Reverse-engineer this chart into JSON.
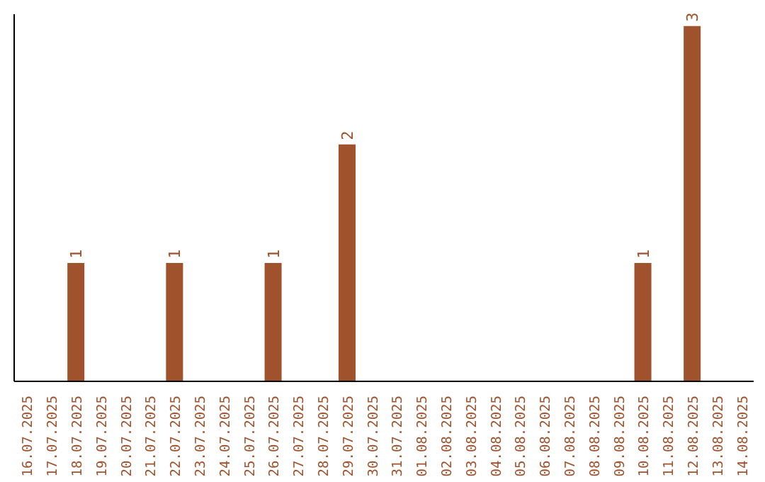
{
  "chart_data": {
    "type": "bar",
    "categories": [
      "16.07.2025",
      "17.07.2025",
      "18.07.2025",
      "19.07.2025",
      "20.07.2025",
      "21.07.2025",
      "22.07.2025",
      "23.07.2025",
      "24.07.2025",
      "25.07.2025",
      "26.07.2025",
      "27.07.2025",
      "28.07.2025",
      "29.07.2025",
      "30.07.2025",
      "31.07.2025",
      "01.08.2025",
      "02.08.2025",
      "03.08.2025",
      "04.08.2025",
      "05.08.2025",
      "06.08.2025",
      "07.08.2025",
      "08.08.2025",
      "09.08.2025",
      "10.08.2025",
      "11.08.2025",
      "12.08.2025",
      "13.08.2025",
      "14.08.2025"
    ],
    "values": [
      0,
      0,
      1,
      0,
      0,
      0,
      1,
      0,
      0,
      0,
      1,
      0,
      0,
      2,
      0,
      0,
      0,
      0,
      0,
      0,
      0,
      0,
      0,
      0,
      0,
      1,
      0,
      3,
      0,
      0
    ],
    "value_labels": [
      null,
      null,
      "1",
      null,
      null,
      null,
      "1",
      null,
      null,
      null,
      "1",
      null,
      null,
      "2",
      null,
      null,
      null,
      null,
      null,
      null,
      null,
      null,
      null,
      null,
      null,
      "1",
      null,
      "3",
      null,
      null
    ],
    "color": "#a0522d",
    "ylim": [
      0,
      3.1
    ],
    "grid": false,
    "legend": false
  }
}
